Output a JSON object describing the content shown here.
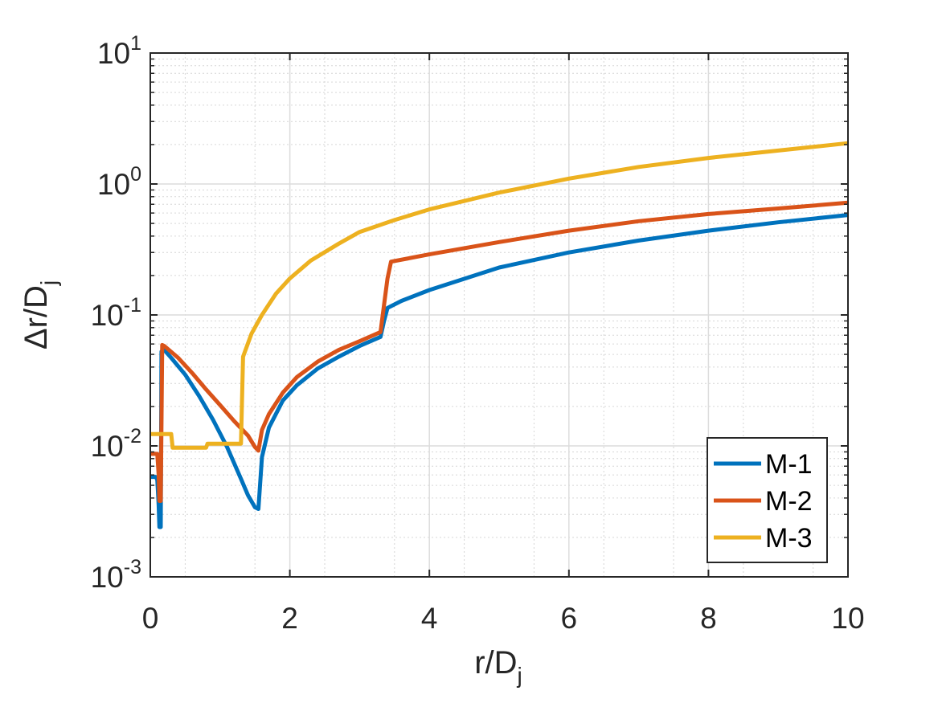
{
  "chart_data": {
    "type": "line",
    "xlabel": {
      "main": "r/D",
      "sub": "j"
    },
    "ylabel": {
      "main": "Δr/D",
      "sub": "j"
    },
    "xlim": [
      0,
      10
    ],
    "ylim": [
      0.001,
      10
    ],
    "yscale": "log",
    "grid": true,
    "minor_grid": true,
    "legend_position": "bottom-right",
    "x_ticks": [
      {
        "value": 0,
        "label": "0"
      },
      {
        "value": 2,
        "label": "2"
      },
      {
        "value": 4,
        "label": "4"
      },
      {
        "value": 6,
        "label": "6"
      },
      {
        "value": 8,
        "label": "8"
      },
      {
        "value": 10,
        "label": "10"
      }
    ],
    "y_ticks": [
      {
        "value": 0.001,
        "base": "10",
        "exp": "-3"
      },
      {
        "value": 0.01,
        "base": "10",
        "exp": "-2"
      },
      {
        "value": 0.1,
        "base": "10",
        "exp": "-1"
      },
      {
        "value": 1,
        "base": "10",
        "exp": "0"
      },
      {
        "value": 10,
        "base": "10",
        "exp": "1"
      }
    ],
    "series": [
      {
        "name": "M-1",
        "color": "#0072BD",
        "points": [
          [
            0,
            0.0058
          ],
          [
            0.08,
            0.0058
          ],
          [
            0.1,
            0.0055
          ],
          [
            0.11,
            0.0045
          ],
          [
            0.12,
            0.0035
          ],
          [
            0.13,
            0.0024
          ],
          [
            0.15,
            0.0024
          ],
          [
            0.16,
            0.0525
          ],
          [
            0.2,
            0.054
          ],
          [
            0.3,
            0.047
          ],
          [
            0.5,
            0.035
          ],
          [
            0.7,
            0.024
          ],
          [
            0.9,
            0.0158
          ],
          [
            1.1,
            0.0098
          ],
          [
            1.3,
            0.0056
          ],
          [
            1.4,
            0.0042
          ],
          [
            1.5,
            0.0034
          ],
          [
            1.55,
            0.0033
          ],
          [
            1.6,
            0.0082
          ],
          [
            1.7,
            0.0138
          ],
          [
            1.9,
            0.0222
          ],
          [
            2.1,
            0.029
          ],
          [
            2.4,
            0.039
          ],
          [
            2.7,
            0.048
          ],
          [
            3.0,
            0.058
          ],
          [
            3.3,
            0.068
          ],
          [
            3.35,
            0.09
          ],
          [
            3.4,
            0.113
          ],
          [
            3.6,
            0.128
          ],
          [
            4.0,
            0.155
          ],
          [
            5.0,
            0.23
          ],
          [
            6.0,
            0.3
          ],
          [
            7.0,
            0.37
          ],
          [
            8.0,
            0.44
          ],
          [
            9.0,
            0.51
          ],
          [
            10.0,
            0.58
          ]
        ]
      },
      {
        "name": "M-2",
        "color": "#D95319",
        "points": [
          [
            0,
            0.0087
          ],
          [
            0.1,
            0.0087
          ],
          [
            0.12,
            0.006
          ],
          [
            0.13,
            0.0038
          ],
          [
            0.15,
            0.0038
          ],
          [
            0.17,
            0.059
          ],
          [
            0.2,
            0.058
          ],
          [
            0.4,
            0.047
          ],
          [
            0.6,
            0.036
          ],
          [
            0.8,
            0.027
          ],
          [
            1.0,
            0.0205
          ],
          [
            1.2,
            0.0155
          ],
          [
            1.4,
            0.012
          ],
          [
            1.5,
            0.0098
          ],
          [
            1.55,
            0.0092
          ],
          [
            1.6,
            0.0132
          ],
          [
            1.7,
            0.0175
          ],
          [
            1.9,
            0.0255
          ],
          [
            2.1,
            0.0335
          ],
          [
            2.4,
            0.044
          ],
          [
            2.7,
            0.054
          ],
          [
            3.0,
            0.063
          ],
          [
            3.3,
            0.074
          ],
          [
            3.4,
            0.19
          ],
          [
            3.45,
            0.255
          ],
          [
            4.0,
            0.29
          ],
          [
            5.0,
            0.36
          ],
          [
            6.0,
            0.44
          ],
          [
            7.0,
            0.52
          ],
          [
            8.0,
            0.59
          ],
          [
            9.0,
            0.65
          ],
          [
            10.0,
            0.72
          ]
        ]
      },
      {
        "name": "M-3",
        "color": "#EDB120",
        "points": [
          [
            0,
            0.0123
          ],
          [
            0.3,
            0.0123
          ],
          [
            0.32,
            0.0097
          ],
          [
            0.8,
            0.0097
          ],
          [
            0.82,
            0.0104
          ],
          [
            1.3,
            0.0104
          ],
          [
            1.33,
            0.048
          ],
          [
            1.45,
            0.072
          ],
          [
            1.6,
            0.1
          ],
          [
            1.8,
            0.145
          ],
          [
            2.0,
            0.19
          ],
          [
            2.3,
            0.26
          ],
          [
            2.7,
            0.35
          ],
          [
            3.0,
            0.43
          ],
          [
            3.5,
            0.53
          ],
          [
            4.0,
            0.64
          ],
          [
            5.0,
            0.86
          ],
          [
            6.0,
            1.1
          ],
          [
            7.0,
            1.35
          ],
          [
            8.0,
            1.58
          ],
          [
            9.0,
            1.8
          ],
          [
            10.0,
            2.05
          ]
        ]
      }
    ]
  }
}
